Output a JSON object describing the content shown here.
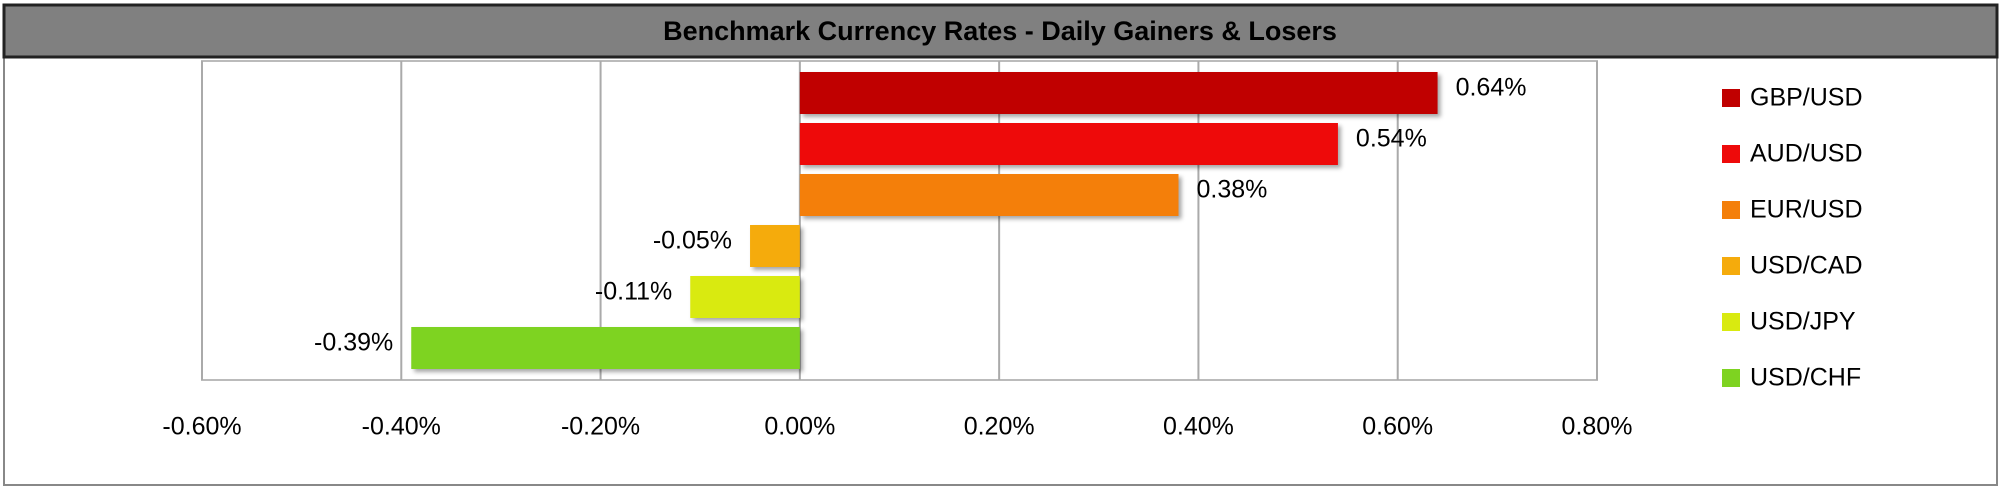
{
  "chart_data": {
    "type": "bar",
    "orientation": "horizontal",
    "title": "Benchmark Currency Rates - Daily Gainers & Losers",
    "series": [
      {
        "name": "GBP/USD",
        "color": "#c00000",
        "values": [
          0.64
        ],
        "value_labels": [
          "0.64%"
        ]
      },
      {
        "name": "AUD/USD",
        "color": "#ee0a0a",
        "values": [
          0.54
        ],
        "value_labels": [
          "0.54%"
        ]
      },
      {
        "name": "EUR/USD",
        "color": "#f47f0a",
        "values": [
          0.38
        ],
        "value_labels": [
          "0.38%"
        ]
      },
      {
        "name": "USD/CAD",
        "color": "#f5ab0c",
        "values": [
          -0.05
        ],
        "value_labels": [
          "-0.05%"
        ]
      },
      {
        "name": "USD/JPY",
        "color": "#d9ea10",
        "values": [
          -0.11
        ],
        "value_labels": [
          "-0.11%"
        ]
      },
      {
        "name": "USD/CHF",
        "color": "#7ed321",
        "values": [
          -0.39
        ],
        "value_labels": [
          "-0.39%"
        ]
      }
    ],
    "xlim": [
      -0.6,
      0.8
    ],
    "xticks": [
      {
        "value": -0.6,
        "label": "-0.60%"
      },
      {
        "value": -0.4,
        "label": "-0.40%"
      },
      {
        "value": -0.2,
        "label": "-0.20%"
      },
      {
        "value": 0,
        "label": "0.00%"
      },
      {
        "value": 0.2,
        "label": "0.20%"
      },
      {
        "value": 0.4,
        "label": "0.40%"
      },
      {
        "value": 0.6,
        "label": "0.60%"
      },
      {
        "value": 0.8,
        "label": "0.80%"
      }
    ],
    "grid": true,
    "legend": "right"
  }
}
